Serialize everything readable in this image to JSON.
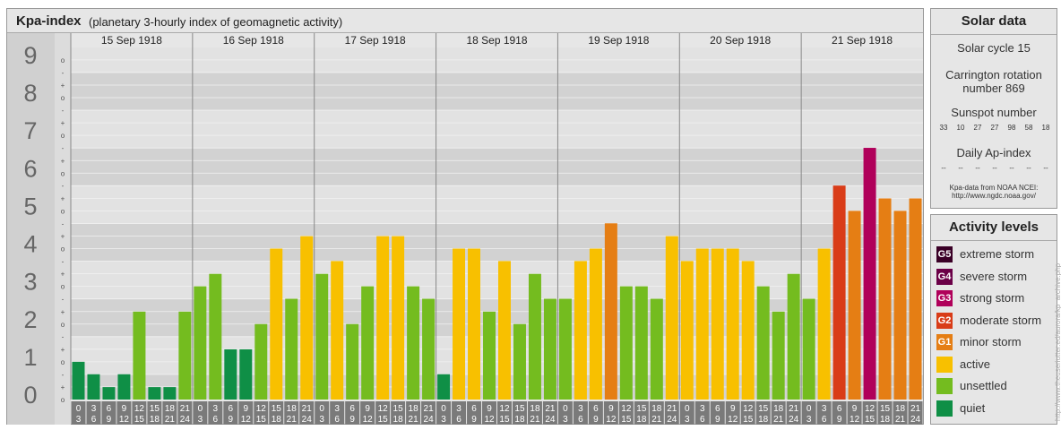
{
  "header": {
    "title": "Kpa-index",
    "subtitle": "(planetary 3-hourly index of geomagnetic activity)"
  },
  "chart_data": {
    "type": "bar",
    "title": "Kpa-index",
    "subtitle": "(planetary 3-hourly index of geomagnetic activity)",
    "ylim": [
      0,
      9.33
    ],
    "y_ticks": [
      "0",
      "1",
      "2",
      "3",
      "4",
      "5",
      "6",
      "7",
      "8",
      "9"
    ],
    "minor_tick_labels": [
      "o",
      "+",
      "-"
    ],
    "days": [
      "15 Sep 1918",
      "16 Sep 1918",
      "17 Sep 1918",
      "18 Sep 1918",
      "19 Sep 1918",
      "20 Sep 1918",
      "21 Sep 1918"
    ],
    "interval_labels": [
      [
        "0",
        "3"
      ],
      [
        "3",
        "6"
      ],
      [
        "6",
        "9"
      ],
      [
        "9",
        "12"
      ],
      [
        "12",
        "15"
      ],
      [
        "15",
        "18"
      ],
      [
        "18",
        "21"
      ],
      [
        "21",
        "24"
      ]
    ],
    "values": [
      1,
      0.67,
      0.33,
      0.67,
      2.33,
      0.33,
      0.33,
      2.33,
      3,
      3.33,
      1.33,
      1.33,
      2,
      4,
      2.67,
      4.33,
      3.33,
      3.67,
      2,
      3,
      4.33,
      4.33,
      3,
      2.67,
      0.67,
      4,
      4,
      2.33,
      3.67,
      2,
      3.33,
      2.67,
      2.67,
      3.67,
      4,
      4.67,
      3,
      3,
      2.67,
      4.33,
      3.67,
      4,
      4,
      4,
      3.67,
      3,
      2.33,
      3.33,
      2.67,
      4,
      5.67,
      5,
      6.67,
      5.33,
      5,
      5.33
    ],
    "grid": true,
    "bar_colors": {
      "quiet": "#0f8f46",
      "unsettled": "#74bc1f",
      "active": "#f8c000",
      "G1": "#e57e14",
      "G2": "#d93c18",
      "G3": "#b0005a",
      "G4": "#6b0047",
      "G5": "#3a0026"
    }
  },
  "solar": {
    "title": "Solar data",
    "cycle": "Solar cycle 15",
    "carrington": "Carrington rotation number 869",
    "sunspot_label": "Sunspot number",
    "sunspot_values": [
      "33",
      "10",
      "27",
      "27",
      "98",
      "58",
      "18"
    ],
    "ap_label": "Daily Ap-index",
    "ap_values": [
      "--",
      "--",
      "--",
      "--",
      "--",
      "--",
      "--"
    ],
    "source_line1": "Kpa-data from NOAA NCEI:",
    "source_line2": "http://www.ngdc.noaa.gov/"
  },
  "activity": {
    "title": "Activity levels",
    "levels": [
      {
        "badge": "G5",
        "label": "extreme storm",
        "color": "#3a0026"
      },
      {
        "badge": "G4",
        "label": "severe storm",
        "color": "#6b0047"
      },
      {
        "badge": "G3",
        "label": "strong storm",
        "color": "#b0005a"
      },
      {
        "badge": "G2",
        "label": "moderate storm",
        "color": "#d93c18"
      },
      {
        "badge": "G1",
        "label": "minor storm",
        "color": "#e57e14"
      },
      {
        "badge": "",
        "label": "active",
        "color": "#f8c000"
      },
      {
        "badge": "",
        "label": "unsettled",
        "color": "#74bc1f"
      },
      {
        "badge": "",
        "label": "quiet",
        "color": "#0f8f46"
      }
    ]
  },
  "credit": "http://www.theuseriutter.ed/aurora/kp_archive.php"
}
